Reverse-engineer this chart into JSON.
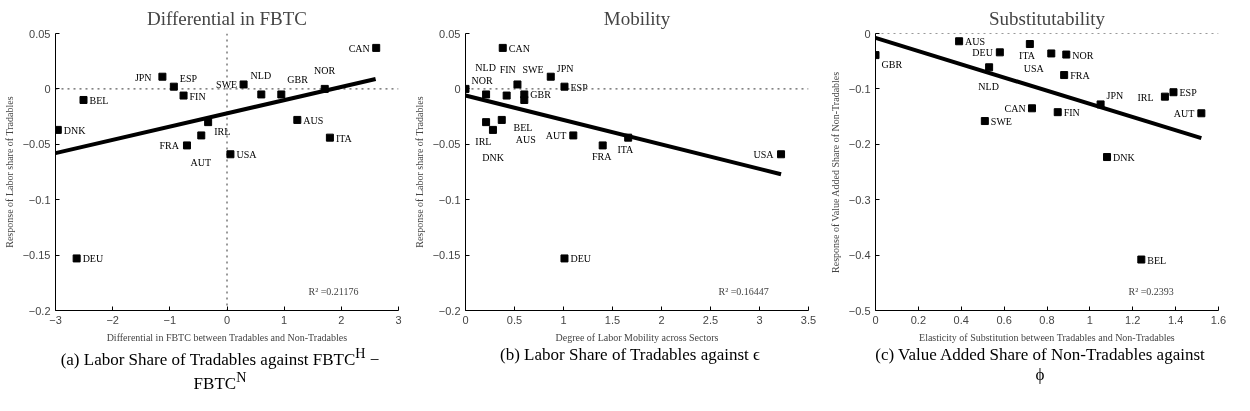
{
  "chart_data": [
    {
      "type": "scatter",
      "title": "Differential in FBTC",
      "xlabel": "Differential in FBTC between Tradables and Non-Tradables",
      "ylabel": "Response of Labor share of Tradables",
      "grid": false,
      "xlim": [
        -3,
        3
      ],
      "ylim": [
        -0.2,
        0.05
      ],
      "xticks": [
        -3,
        -2,
        -1,
        0,
        1,
        2,
        3
      ],
      "yticks": [
        -0.2,
        -0.15,
        -0.1,
        -0.05,
        0,
        0.05
      ],
      "series": [
        {
          "marker": "square",
          "color": "#000000",
          "x": [
            2.61,
            -1.13,
            -0.93,
            -0.76,
            -2.51,
            -2.96,
            0.29,
            0.6,
            0.95,
            1.71,
            -0.33,
            1.23,
            1.8,
            -0.45,
            -0.7,
            0.06,
            -2.63
          ],
          "values": [
            0.037,
            0.011,
            0.002,
            -0.006,
            -0.01,
            -0.037,
            0.004,
            -0.005,
            -0.005,
            0.0,
            -0.03,
            -0.028,
            -0.044,
            -0.042,
            -0.051,
            -0.059,
            -0.153
          ]
        },
        {
          "type": "line",
          "marker": "none",
          "color": "#000000",
          "x": [
            -3,
            2.6
          ],
          "values": [
            -0.058,
            0.009
          ]
        }
      ],
      "ref_lines": [
        {
          "axis": "y",
          "value": 0,
          "line_style": "dotted"
        },
        {
          "axis": "x",
          "value": 0,
          "line_style": "dotted"
        }
      ],
      "annotations": [
        "R² =0.21176",
        "(a) Labor Share of Tradables against FBTC$^{H}$ − FBTC$^{N}$",
        {
          "text": "CAN",
          "x": 2.61,
          "y": 0.037
        },
        {
          "text": "JPN",
          "x": -1.13,
          "y": 0.011
        },
        {
          "text": "ESP",
          "x": -0.93,
          "y": 0.002
        },
        {
          "text": "FIN",
          "x": -0.76,
          "y": -0.006
        },
        {
          "text": "BEL",
          "x": -2.51,
          "y": -0.01
        },
        {
          "text": "DNK",
          "x": -2.96,
          "y": -0.037
        },
        {
          "text": "SWE",
          "x": 0.29,
          "y": 0.004
        },
        {
          "text": "NLD",
          "x": 0.6,
          "y": -0.005
        },
        {
          "text": "GBR",
          "x": 0.95,
          "y": -0.005
        },
        {
          "text": "NOR",
          "x": 1.71,
          "y": 0.0
        },
        {
          "text": "IRL",
          "x": -0.33,
          "y": -0.03
        },
        {
          "text": "AUS",
          "x": 1.23,
          "y": -0.028
        },
        {
          "text": "ITA",
          "x": 1.8,
          "y": -0.044
        },
        {
          "text": "AUT",
          "x": -0.45,
          "y": -0.042
        },
        {
          "text": "FRA",
          "x": -0.7,
          "y": -0.051
        },
        {
          "text": "USA",
          "x": 0.06,
          "y": -0.059
        },
        {
          "text": "DEU",
          "x": -2.63,
          "y": -0.153
        }
      ]
    },
    {
      "type": "scatter",
      "title": "Mobility",
      "xlabel": "Degree of Labor Mobility across Sectors",
      "ylabel": "Response of Labor share of Tradables",
      "grid": false,
      "xlim": [
        0,
        3.5
      ],
      "ylim": [
        -0.2,
        0.05
      ],
      "xticks": [
        0,
        0.5,
        1,
        1.5,
        2,
        2.5,
        3,
        3.5
      ],
      "yticks": [
        -0.2,
        -0.15,
        -0.1,
        -0.05,
        0,
        0.05
      ],
      "series": [
        {
          "marker": "square",
          "color": "#000000",
          "x": [
            0.0,
            0.38,
            0.21,
            0.42,
            0.53,
            0.87,
            1.01,
            0.6,
            0.6,
            0.21,
            0.37,
            0.28,
            1.1,
            1.4,
            1.66,
            3.22,
            1.01
          ],
          "values": [
            0.0,
            0.037,
            -0.005,
            -0.006,
            0.004,
            0.011,
            0.002,
            -0.005,
            -0.01,
            -0.03,
            -0.028,
            -0.037,
            -0.042,
            -0.051,
            -0.044,
            -0.059,
            -0.153
          ]
        },
        {
          "type": "line",
          "marker": "none",
          "color": "#000000",
          "x": [
            0,
            3.22
          ],
          "values": [
            -0.006,
            -0.077
          ]
        }
      ],
      "ref_lines": [
        {
          "axis": "y",
          "value": 0,
          "line_style": "dotted"
        }
      ],
      "annotations": [
        "R² =0.16447",
        "(b) Labor Share of Tradables against ϵ",
        {
          "text": "NOR",
          "x": 0.0,
          "y": 0.0
        },
        {
          "text": "CAN",
          "x": 0.38,
          "y": 0.037
        },
        {
          "text": "NLD",
          "x": 0.21,
          "y": -0.005
        },
        {
          "text": "FIN",
          "x": 0.42,
          "y": -0.006
        },
        {
          "text": "SWE",
          "x": 0.53,
          "y": 0.004
        },
        {
          "text": "JPN",
          "x": 0.87,
          "y": 0.011
        },
        {
          "text": "ESP",
          "x": 1.01,
          "y": 0.002
        },
        {
          "text": "GBR",
          "x": 0.6,
          "y": -0.005
        },
        {
          "text": "BEL",
          "x": 0.6,
          "y": -0.01
        },
        {
          "text": "IRL",
          "x": 0.21,
          "y": -0.03
        },
        {
          "text": "AUS",
          "x": 0.37,
          "y": -0.028
        },
        {
          "text": "DNK",
          "x": 0.28,
          "y": -0.037
        },
        {
          "text": "AUT",
          "x": 1.1,
          "y": -0.042
        },
        {
          "text": "FRA",
          "x": 1.4,
          "y": -0.051
        },
        {
          "text": "ITA",
          "x": 1.66,
          "y": -0.044
        },
        {
          "text": "USA",
          "x": 3.22,
          "y": -0.059
        },
        {
          "text": "DEU",
          "x": 1.01,
          "y": -0.153
        }
      ]
    },
    {
      "type": "scatter",
      "title": "Substitutability",
      "xlabel": "Elasticity of Substitution between Tradables and Non-Tradables",
      "ylabel": "Response of Value Added Share of Non-Tradables",
      "grid": false,
      "xlim": [
        0,
        1.6
      ],
      "ylim": [
        -0.5,
        0
      ],
      "xticks": [
        0,
        0.2,
        0.4,
        0.6,
        0.8,
        1,
        1.2,
        1.4,
        1.6
      ],
      "yticks": [
        -0.5,
        -0.4,
        -0.3,
        -0.2,
        -0.1,
        0
      ],
      "series": [
        {
          "marker": "square",
          "color": "#000000",
          "x": [
            0,
            0.39,
            0.58,
            0.72,
            0.82,
            0.89,
            0.53,
            0.88,
            1.39,
            1.35,
            1.05,
            0.73,
            0.85,
            1.52,
            0.51,
            1.08,
            1.24
          ],
          "values": [
            -0.039,
            -0.014,
            -0.034,
            -0.019,
            -0.036,
            -0.038,
            -0.061,
            -0.075,
            -0.106,
            -0.114,
            -0.128,
            -0.135,
            -0.142,
            -0.144,
            -0.158,
            -0.223,
            -0.408
          ]
        },
        {
          "type": "line",
          "marker": "none",
          "color": "#000000",
          "x": [
            0,
            1.52
          ],
          "values": [
            -0.008,
            -0.189
          ]
        }
      ],
      "ref_lines": [
        {
          "axis": "y",
          "value": 0,
          "line_style": "dotted"
        }
      ],
      "annotations": [
        "R² =0.2393",
        "(c) Value Added Share of Non-Tradables against ϕ",
        {
          "text": "GBR",
          "x": 0,
          "y": -0.039
        },
        {
          "text": "AUS",
          "x": 0.39,
          "y": -0.014
        },
        {
          "text": "DEU",
          "x": 0.58,
          "y": -0.034
        },
        {
          "text": "ITA",
          "x": 0.72,
          "y": -0.019
        },
        {
          "text": "USA",
          "x": 0.82,
          "y": -0.036
        },
        {
          "text": "NOR",
          "x": 0.89,
          "y": -0.038
        },
        {
          "text": "NLD",
          "x": 0.53,
          "y": -0.061
        },
        {
          "text": "FRA",
          "x": 0.88,
          "y": -0.075
        },
        {
          "text": "ESP",
          "x": 1.39,
          "y": -0.106
        },
        {
          "text": "IRL",
          "x": 1.35,
          "y": -0.114
        },
        {
          "text": "JPN",
          "x": 1.05,
          "y": -0.128
        },
        {
          "text": "CAN",
          "x": 0.73,
          "y": -0.135
        },
        {
          "text": "FIN",
          "x": 0.85,
          "y": -0.142
        },
        {
          "text": "AUT",
          "x": 1.52,
          "y": -0.144
        },
        {
          "text": "SWE",
          "x": 0.51,
          "y": -0.158
        },
        {
          "text": "DNK",
          "x": 1.08,
          "y": -0.223
        },
        {
          "text": "BEL",
          "x": 1.24,
          "y": -0.408
        }
      ]
    }
  ]
}
